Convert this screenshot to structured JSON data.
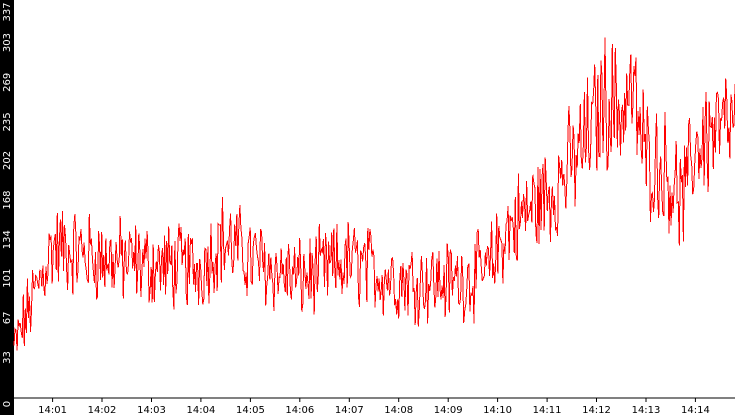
{
  "chart_data": {
    "type": "line",
    "title": "",
    "xlabel": "",
    "ylabel": "",
    "ylim": [
      0,
      337
    ],
    "ytick_labels": [
      "0",
      "33",
      "67",
      "101",
      "134",
      "168",
      "202",
      "235",
      "269",
      "303",
      "337"
    ],
    "ytick_values": [
      0,
      33,
      67,
      101,
      134,
      168,
      202,
      235,
      269,
      303,
      337
    ],
    "xtick_labels": [
      "14:01",
      "14:02",
      "14:03",
      "14:04",
      "14:05",
      "14:06",
      "14:07",
      "14:08",
      "14:09",
      "14:10",
      "14:11",
      "14:12",
      "14:13",
      "14:14"
    ],
    "xtick_minutes": [
      1,
      2,
      3,
      4,
      5,
      6,
      7,
      8,
      9,
      10,
      11,
      12,
      13,
      14
    ],
    "xlim_minutes": [
      0.22,
      14.8
    ],
    "grid": false,
    "series": [
      {
        "values_minutes_vs_value": [
          [
            0.22,
            40
          ],
          [
            1.0,
            128
          ],
          [
            2.0,
            118
          ],
          [
            3.0,
            112
          ],
          [
            4.0,
            110
          ],
          [
            4.4,
            135
          ],
          [
            5.0,
            118
          ],
          [
            5.5,
            108
          ],
          [
            6.0,
            100
          ],
          [
            7.0,
            115
          ],
          [
            8.0,
            100
          ],
          [
            9.0,
            98
          ],
          [
            9.8,
            105
          ],
          [
            10.15,
            140
          ],
          [
            10.6,
            158
          ],
          [
            11.0,
            172
          ],
          [
            11.5,
            198
          ],
          [
            11.9,
            228
          ],
          [
            12.15,
            255
          ],
          [
            12.5,
            245
          ],
          [
            12.7,
            262
          ],
          [
            13.0,
            205
          ],
          [
            13.4,
            195
          ],
          [
            13.75,
            165
          ],
          [
            14.0,
            215
          ],
          [
            14.3,
            225
          ],
          [
            14.6,
            228
          ],
          [
            14.8,
            232
          ]
        ]
      }
    ],
    "colors": {
      "background": "#ffffff",
      "axis_strip": "#000000",
      "line": "#ff0000",
      "y_label_text": "#ffffff",
      "x_label_text": "#000000"
    }
  }
}
